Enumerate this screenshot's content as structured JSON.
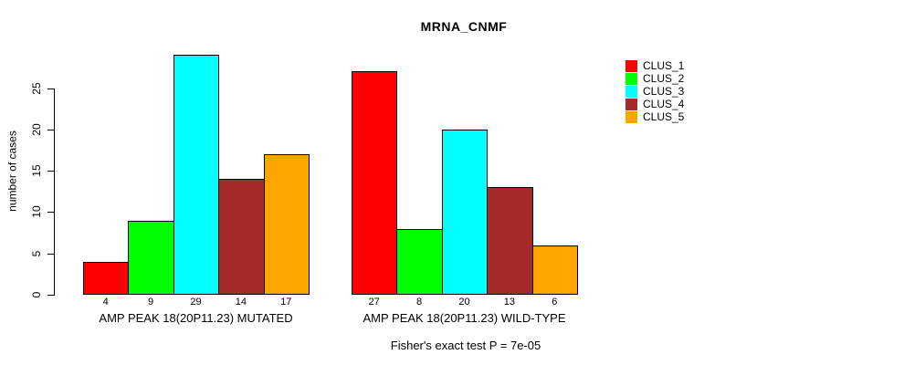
{
  "chart_data": {
    "type": "bar",
    "title": "MRNA_CNMF",
    "ylabel": "number of cases",
    "xlabel": "",
    "yticks": [
      0,
      5,
      10,
      15,
      20,
      25
    ],
    "ylim": [
      0,
      29
    ],
    "grid": false,
    "legend_position": "right",
    "series": [
      "CLUS_1",
      "CLUS_2",
      "CLUS_3",
      "CLUS_4",
      "CLUS_5"
    ],
    "colors": [
      "#FF0000",
      "#00FF00",
      "#00FFFF",
      "#A52A2A",
      "#FFA500"
    ],
    "groups": [
      {
        "label": "AMP PEAK 18(20P11.23) MUTATED",
        "values": [
          4,
          9,
          29,
          14,
          17
        ]
      },
      {
        "label": "AMP PEAK 18(20P11.23) WILD-TYPE",
        "values": [
          27,
          8,
          20,
          13,
          6
        ]
      }
    ],
    "value_labels_shown": true,
    "annotation": "Fisher's exact test P = 7e-05"
  }
}
